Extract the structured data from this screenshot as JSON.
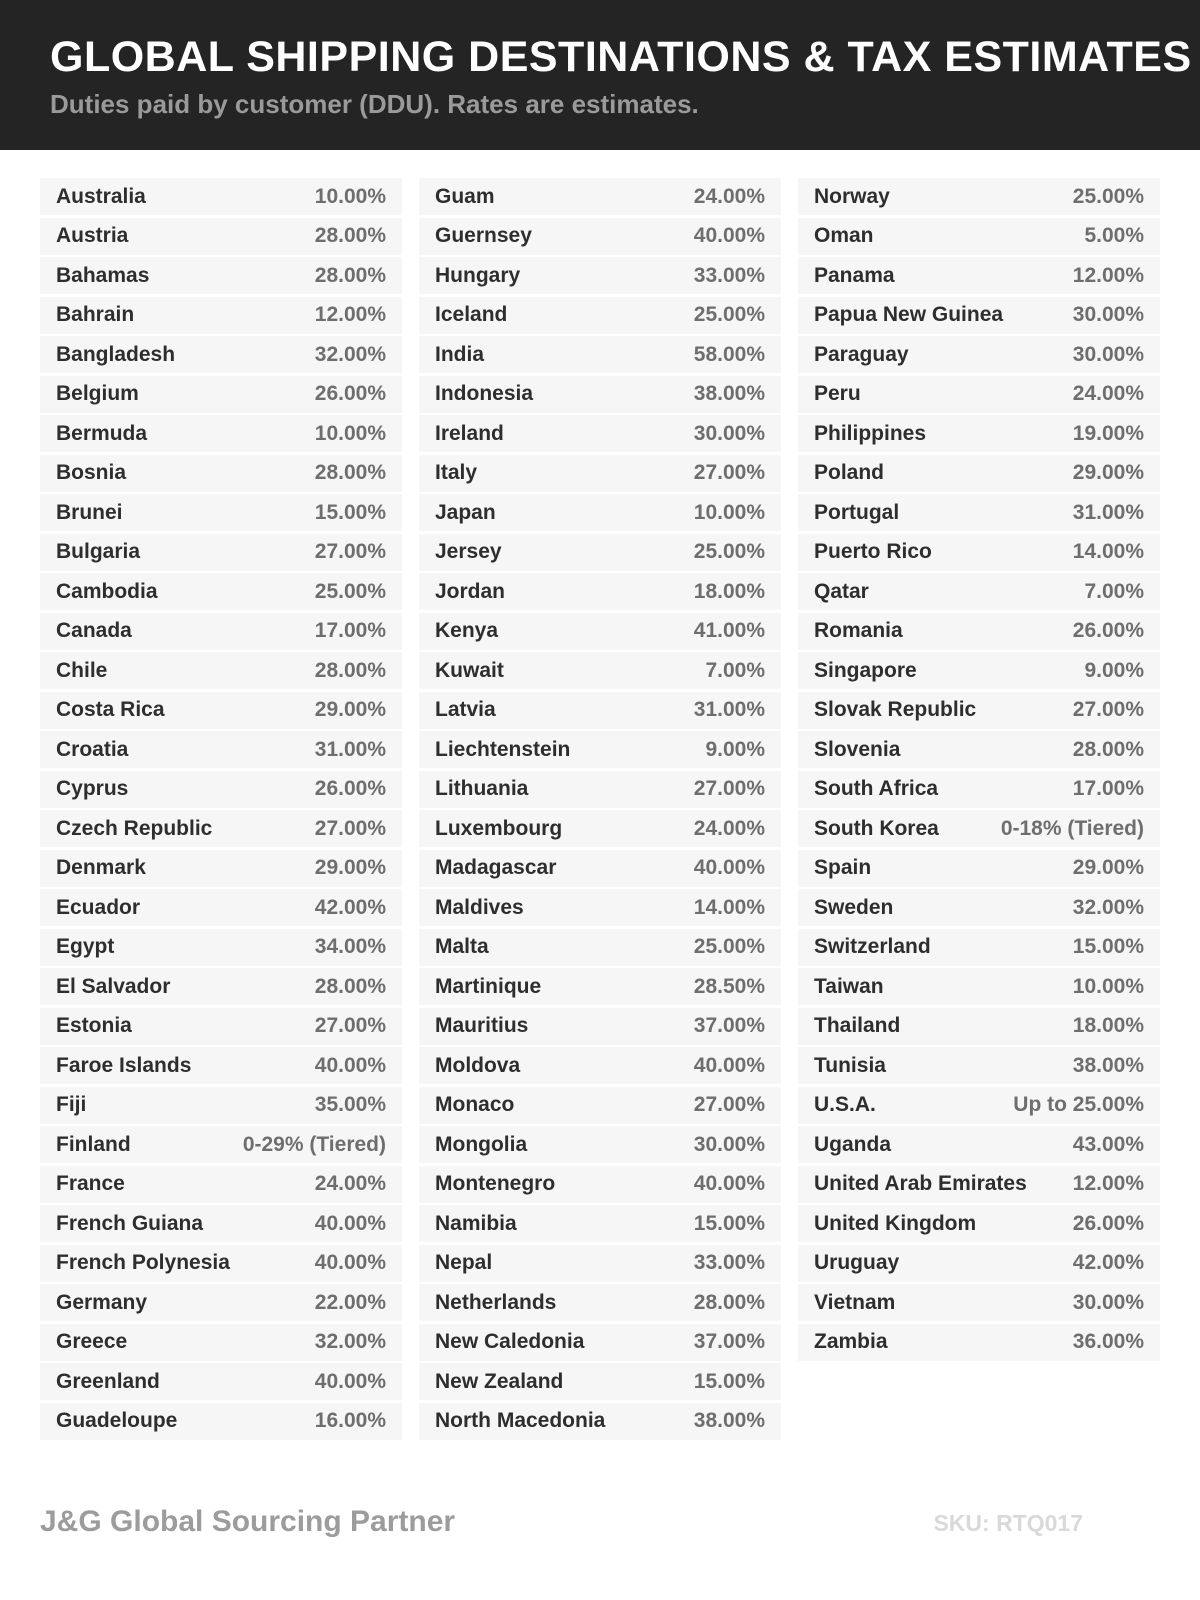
{
  "header": {
    "title": "GLOBAL SHIPPING DESTINATIONS & TAX ESTIMATES",
    "subtitle": "Duties paid by customer (DDU). Rates are estimates."
  },
  "colors": {
    "header_bg": "#242424",
    "title_text": "#ffffff",
    "subtitle_text": "#9a9a9a",
    "row_bg": "#f6f6f6",
    "country_text": "#2e2e2e",
    "rate_text": "#6e6e6e",
    "brand_text": "#9c9c9c",
    "sku_text": "#d9d9d9"
  },
  "table": {
    "columns": [
      {
        "entries": [
          {
            "country": "Australia",
            "rate": "10.00%"
          },
          {
            "country": "Austria",
            "rate": "28.00%"
          },
          {
            "country": "Bahamas",
            "rate": "28.00%"
          },
          {
            "country": "Bahrain",
            "rate": "12.00%"
          },
          {
            "country": "Bangladesh",
            "rate": "32.00%"
          },
          {
            "country": "Belgium",
            "rate": "26.00%"
          },
          {
            "country": "Bermuda",
            "rate": "10.00%"
          },
          {
            "country": "Bosnia",
            "rate": "28.00%"
          },
          {
            "country": "Brunei",
            "rate": "15.00%"
          },
          {
            "country": "Bulgaria",
            "rate": "27.00%"
          },
          {
            "country": "Cambodia",
            "rate": "25.00%"
          },
          {
            "country": "Canada",
            "rate": "17.00%"
          },
          {
            "country": "Chile",
            "rate": "28.00%"
          },
          {
            "country": "Costa Rica",
            "rate": "29.00%"
          },
          {
            "country": "Croatia",
            "rate": "31.00%"
          },
          {
            "country": "Cyprus",
            "rate": "26.00%"
          },
          {
            "country": "Czech Republic",
            "rate": "27.00%"
          },
          {
            "country": "Denmark",
            "rate": "29.00%"
          },
          {
            "country": "Ecuador",
            "rate": "42.00%"
          },
          {
            "country": "Egypt",
            "rate": "34.00%"
          },
          {
            "country": "El Salvador",
            "rate": "28.00%"
          },
          {
            "country": "Estonia",
            "rate": "27.00%"
          },
          {
            "country": "Faroe Islands",
            "rate": "40.00%"
          },
          {
            "country": "Fiji",
            "rate": "35.00%"
          },
          {
            "country": "Finland",
            "rate": "0-29% (Tiered)"
          },
          {
            "country": "France",
            "rate": "24.00%"
          },
          {
            "country": "French Guiana",
            "rate": "40.00%"
          },
          {
            "country": "French Polynesia",
            "rate": "40.00%"
          },
          {
            "country": "Germany",
            "rate": "22.00%"
          },
          {
            "country": "Greece",
            "rate": "32.00%"
          },
          {
            "country": "Greenland",
            "rate": "40.00%"
          },
          {
            "country": "Guadeloupe",
            "rate": "16.00%"
          }
        ]
      },
      {
        "entries": [
          {
            "country": "Guam",
            "rate": "24.00%"
          },
          {
            "country": "Guernsey",
            "rate": "40.00%"
          },
          {
            "country": "Hungary",
            "rate": "33.00%"
          },
          {
            "country": "Iceland",
            "rate": "25.00%"
          },
          {
            "country": "India",
            "rate": "58.00%"
          },
          {
            "country": "Indonesia",
            "rate": "38.00%"
          },
          {
            "country": "Ireland",
            "rate": "30.00%"
          },
          {
            "country": "Italy",
            "rate": "27.00%"
          },
          {
            "country": "Japan",
            "rate": "10.00%"
          },
          {
            "country": "Jersey",
            "rate": "25.00%"
          },
          {
            "country": "Jordan",
            "rate": "18.00%"
          },
          {
            "country": "Kenya",
            "rate": "41.00%"
          },
          {
            "country": "Kuwait",
            "rate": "7.00%"
          },
          {
            "country": "Latvia",
            "rate": "31.00%"
          },
          {
            "country": "Liechtenstein",
            "rate": "9.00%"
          },
          {
            "country": "Lithuania",
            "rate": "27.00%"
          },
          {
            "country": "Luxembourg",
            "rate": "24.00%"
          },
          {
            "country": "Madagascar",
            "rate": "40.00%"
          },
          {
            "country": "Maldives",
            "rate": "14.00%"
          },
          {
            "country": "Malta",
            "rate": "25.00%"
          },
          {
            "country": "Martinique",
            "rate": "28.50%"
          },
          {
            "country": "Mauritius",
            "rate": "37.00%"
          },
          {
            "country": "Moldova",
            "rate": "40.00%"
          },
          {
            "country": "Monaco",
            "rate": "27.00%"
          },
          {
            "country": "Mongolia",
            "rate": "30.00%"
          },
          {
            "country": "Montenegro",
            "rate": "40.00%"
          },
          {
            "country": "Namibia",
            "rate": "15.00%"
          },
          {
            "country": "Nepal",
            "rate": "33.00%"
          },
          {
            "country": "Netherlands",
            "rate": "28.00%"
          },
          {
            "country": "New Caledonia",
            "rate": "37.00%"
          },
          {
            "country": "New Zealand",
            "rate": "15.00%"
          },
          {
            "country": "North Macedonia",
            "rate": "38.00%"
          }
        ]
      },
      {
        "entries": [
          {
            "country": "Norway",
            "rate": "25.00%"
          },
          {
            "country": "Oman",
            "rate": "5.00%"
          },
          {
            "country": "Panama",
            "rate": "12.00%"
          },
          {
            "country": "Papua New Guinea",
            "rate": "30.00%"
          },
          {
            "country": "Paraguay",
            "rate": "30.00%"
          },
          {
            "country": "Peru",
            "rate": "24.00%"
          },
          {
            "country": "Philippines",
            "rate": "19.00%"
          },
          {
            "country": "Poland",
            "rate": "29.00%"
          },
          {
            "country": "Portugal",
            "rate": "31.00%"
          },
          {
            "country": "Puerto Rico",
            "rate": "14.00%"
          },
          {
            "country": "Qatar",
            "rate": "7.00%"
          },
          {
            "country": "Romania",
            "rate": "26.00%"
          },
          {
            "country": "Singapore",
            "rate": "9.00%"
          },
          {
            "country": "Slovak Republic",
            "rate": "27.00%"
          },
          {
            "country": "Slovenia",
            "rate": "28.00%"
          },
          {
            "country": "South Africa",
            "rate": "17.00%"
          },
          {
            "country": "South Korea",
            "rate": "0-18% (Tiered)"
          },
          {
            "country": "Spain",
            "rate": "29.00%"
          },
          {
            "country": "Sweden",
            "rate": "32.00%"
          },
          {
            "country": "Switzerland",
            "rate": "15.00%"
          },
          {
            "country": "Taiwan",
            "rate": "10.00%"
          },
          {
            "country": "Thailand",
            "rate": "18.00%"
          },
          {
            "country": "Tunisia",
            "rate": "38.00%"
          },
          {
            "country": "U.S.A.",
            "rate": "Up to 25.00%"
          },
          {
            "country": "Uganda",
            "rate": "43.00%"
          },
          {
            "country": "United Arab Emirates",
            "rate": "12.00%"
          },
          {
            "country": "United Kingdom",
            "rate": "26.00%"
          },
          {
            "country": "Uruguay",
            "rate": "42.00%"
          },
          {
            "country": "Vietnam",
            "rate": "30.00%"
          },
          {
            "country": "Zambia",
            "rate": "36.00%"
          }
        ]
      }
    ]
  },
  "footer": {
    "brand": "J&G Global Sourcing Partner",
    "sku": "SKU: RTQ017"
  }
}
